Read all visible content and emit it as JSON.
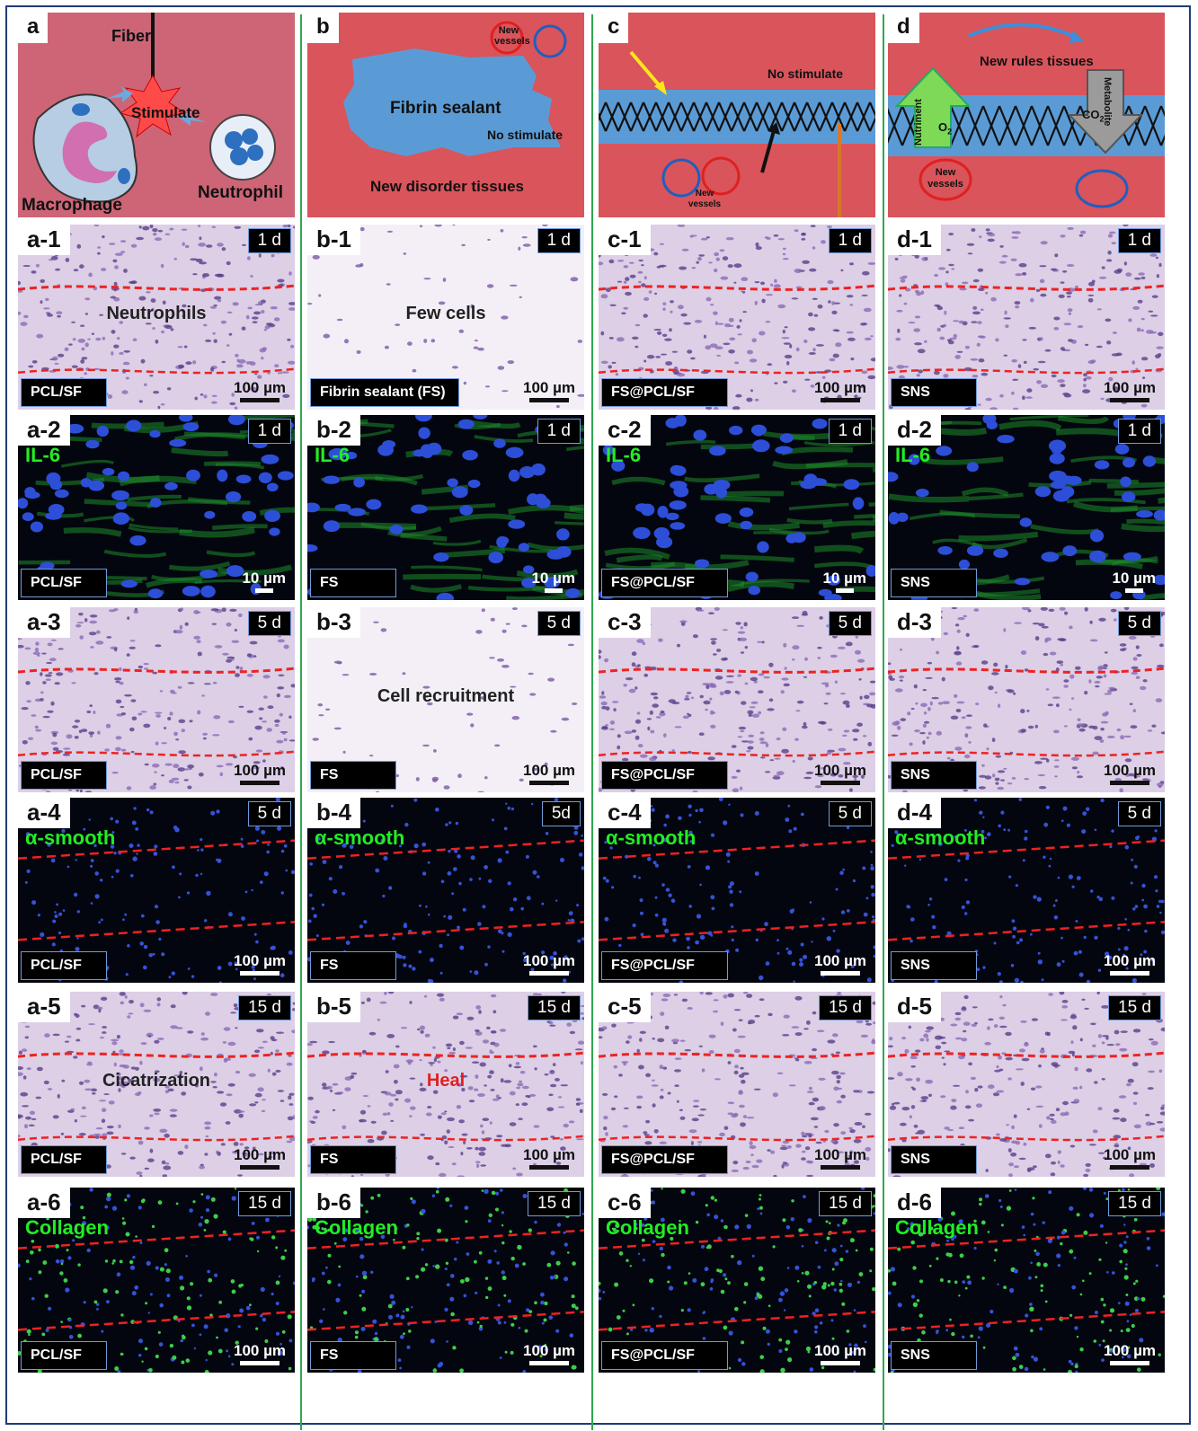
{
  "columns": [
    {
      "schematic": {
        "tag": "a",
        "labels": {
          "fiber": "Fiber",
          "stimulate": "Stimulate",
          "macrophage": "Macrophage",
          "neutrophil": "Neutrophil"
        }
      },
      "panels": [
        {
          "tag": "a-1",
          "day": "1 d",
          "sample": "PCL/SF",
          "scale": "100 µm",
          "label": "Neutrophils",
          "kind": "he"
        },
        {
          "tag": "a-2",
          "day": "1 d",
          "sample": "PCL/SF",
          "scale": "10 µm",
          "marker": "IL-6",
          "kind": "fl_il6"
        },
        {
          "tag": "a-3",
          "day": "5 d",
          "sample": "PCL/SF",
          "scale": "100 µm",
          "kind": "he"
        },
        {
          "tag": "a-4",
          "day": "5 d",
          "sample": "PCL/SF",
          "scale": "100 µm",
          "marker": "α-smooth",
          "kind": "fl_sma"
        },
        {
          "tag": "a-5",
          "day": "15 d",
          "sample": "PCL/SF",
          "scale": "100 µm",
          "label": "Cicatrization",
          "kind": "he"
        },
        {
          "tag": "a-6",
          "day": "15 d",
          "sample": "PCL/SF",
          "scale": "100 µm",
          "marker": "Collagen",
          "kind": "fl_col"
        }
      ]
    },
    {
      "schematic": {
        "tag": "b",
        "labels": {
          "new_vessels": "New vessels",
          "fibrin": "Fibrin sealant",
          "no_stimulate": "No stimulate",
          "disorder": "New disorder tissues"
        }
      },
      "panels": [
        {
          "tag": "b-1",
          "day": "1 d",
          "sample": "Fibrin sealant (FS)",
          "scale": "100 µm",
          "label": "Few cells",
          "kind": "he_light"
        },
        {
          "tag": "b-2",
          "day": "1 d",
          "sample": "FS",
          "scale": "10 µm",
          "marker": "IL-6",
          "kind": "fl_il6"
        },
        {
          "tag": "b-3",
          "day": "5 d",
          "sample": "FS",
          "scale": "100 µm",
          "label": "Cell recruitment",
          "kind": "he_light"
        },
        {
          "tag": "b-4",
          "day": "5d",
          "sample": "FS",
          "scale": "100 µm",
          "marker": "α-smooth",
          "kind": "fl_sma"
        },
        {
          "tag": "b-5",
          "day": "15 d",
          "sample": "FS",
          "scale": "100 µm",
          "label": "Heal",
          "kind": "he"
        },
        {
          "tag": "b-6",
          "day": "15 d",
          "sample": "FS",
          "scale": "100 µm",
          "marker": "Collagen",
          "kind": "fl_col"
        }
      ]
    },
    {
      "schematic": {
        "tag": "c",
        "labels": {
          "no_stimulate": "No stimulate",
          "new_vessels": "New vessels"
        }
      },
      "panels": [
        {
          "tag": "c-1",
          "day": "1 d",
          "sample": "FS@PCL/SF",
          "scale": "100 µm",
          "kind": "he"
        },
        {
          "tag": "c-2",
          "day": "1 d",
          "sample": "FS@PCL/SF",
          "scale": "10 µm",
          "marker": "IL-6",
          "kind": "fl_il6"
        },
        {
          "tag": "c-3",
          "day": "5 d",
          "sample": "FS@PCL/SF",
          "scale": "100 µm",
          "kind": "he"
        },
        {
          "tag": "c-4",
          "day": "5 d",
          "sample": "FS@PCL/SF",
          "scale": "100 µm",
          "marker": "α-smooth",
          "kind": "fl_sma"
        },
        {
          "tag": "c-5",
          "day": "15 d",
          "sample": "FS@PCL/SF",
          "scale": "100 µm",
          "kind": "he"
        },
        {
          "tag": "c-6",
          "day": "15 d",
          "sample": "FS@PCL/SF",
          "scale": "100 µm",
          "marker": "Collagen",
          "kind": "fl_col"
        }
      ]
    },
    {
      "schematic": {
        "tag": "d",
        "labels": {
          "new_rules": "New rules tissues",
          "nutriment": "Nutriment",
          "o2": "O",
          "o2_sub": "2",
          "co2": "CO",
          "co2_sub": "2",
          "metabolite": "Metabolite",
          "new_vessels": "New vessels"
        }
      },
      "panels": [
        {
          "tag": "d-1",
          "day": "1 d",
          "sample": "SNS",
          "scale": "100 µm",
          "kind": "he"
        },
        {
          "tag": "d-2",
          "day": "1 d",
          "sample": "SNS",
          "scale": "10 µm",
          "marker": "IL-6",
          "kind": "fl_il6"
        },
        {
          "tag": "d-3",
          "day": "5 d",
          "sample": "SNS",
          "scale": "100 µm",
          "kind": "he"
        },
        {
          "tag": "d-4",
          "day": "5 d",
          "sample": "SNS",
          "scale": "100 µm",
          "marker": "α-smooth",
          "kind": "fl_sma"
        },
        {
          "tag": "d-5",
          "day": "15 d",
          "sample": "SNS",
          "scale": "100 µm",
          "kind": "he"
        },
        {
          "tag": "d-6",
          "day": "15 d",
          "sample": "SNS",
          "scale": "100 µm",
          "marker": "Collagen",
          "kind": "fl_col"
        }
      ]
    }
  ],
  "colors": {
    "schematic_bg": "#d9545b",
    "schematic_bg_a": "#cd6577",
    "fibrin_blue": "#5b9bd5",
    "he_bg": "#ddd0e6",
    "he_cell": "#5a3f8a",
    "fl_bg": "#04060f",
    "nucleus": "#2d4fd8",
    "green": "#2ee02e",
    "dash_red": "#ee2222",
    "divider": "#2fa84f",
    "frame": "#1f3a78"
  }
}
